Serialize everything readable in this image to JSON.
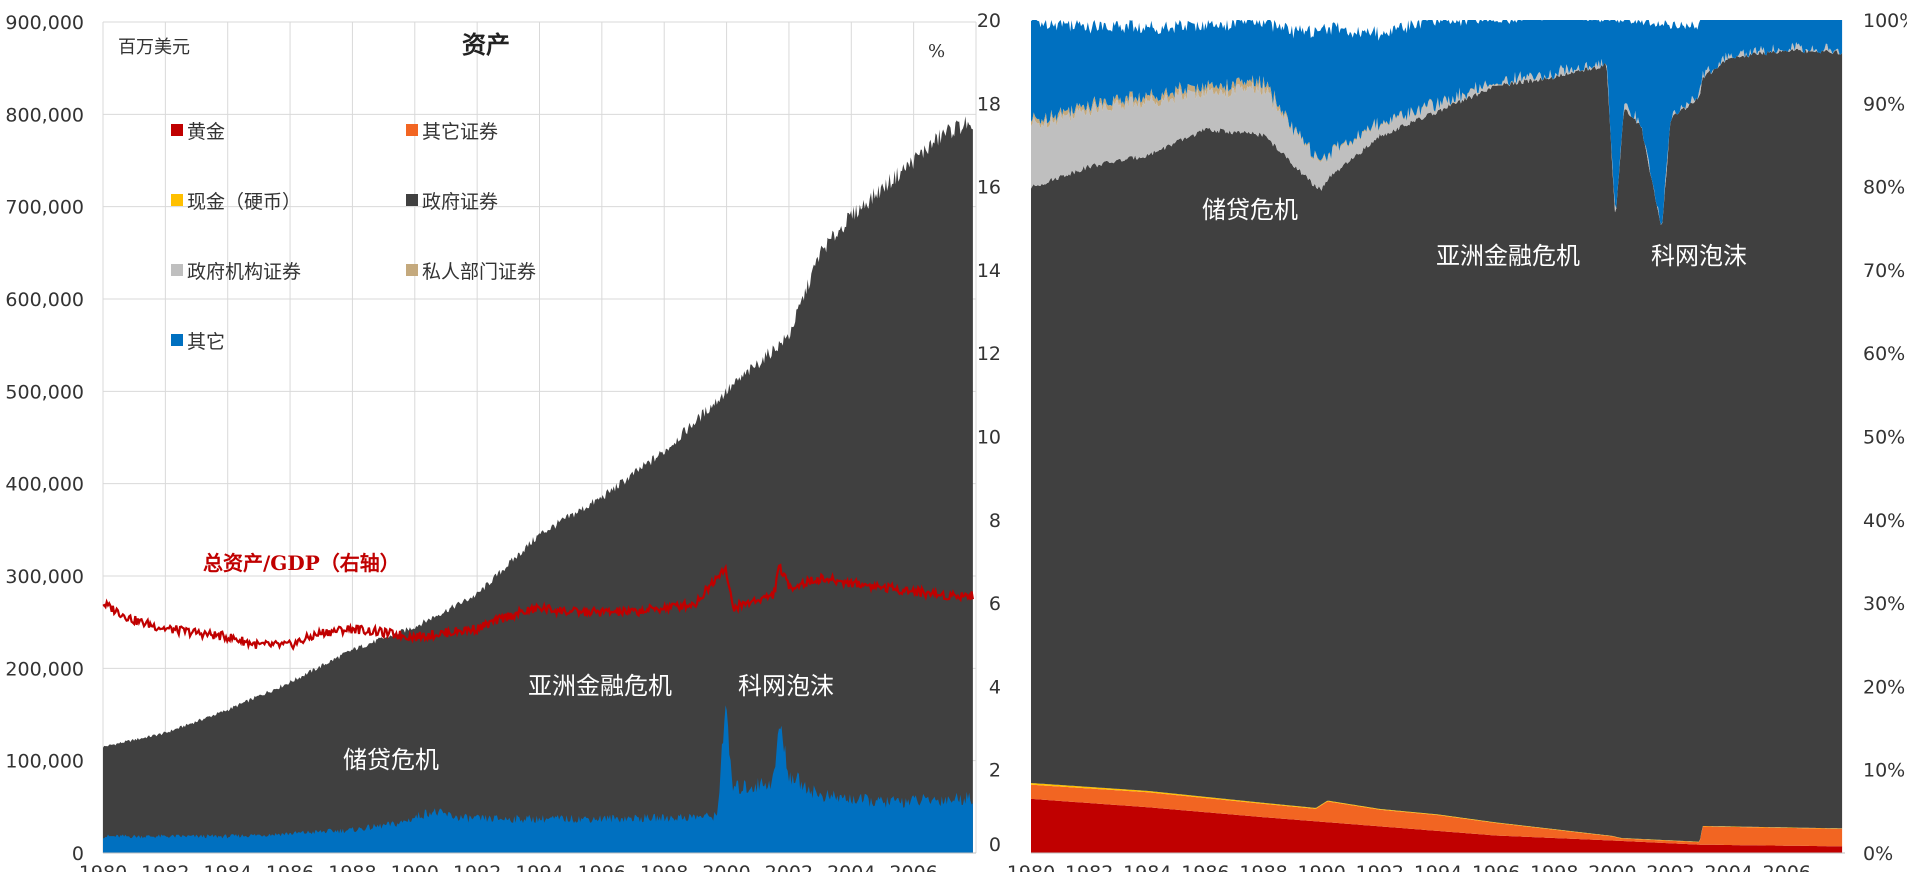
{
  "colors": {
    "gold": "#c00000",
    "other_securities": "#f26522",
    "cash": "#ffc000",
    "government": "#404040",
    "agency": "#bfbfbf",
    "private": "#c4a97d",
    "other": "#0070c0",
    "ratio_line": "#c00000",
    "grid": "#d9d9d9"
  },
  "chart_data": [
    {
      "type": "area",
      "title": "资产",
      "unit_left": "百万美元",
      "unit_right": "%",
      "x_ticks": [
        "1980",
        "1982",
        "1984",
        "1986",
        "1988",
        "1990",
        "1992",
        "1994",
        "1996",
        "1998",
        "2000",
        "2002",
        "2004",
        "2006"
      ],
      "xlim": [
        1980,
        2008
      ],
      "ylim": [
        0,
        900000
      ],
      "y_ticks": [
        "0",
        "100,000",
        "200,000",
        "300,000",
        "400,000",
        "500,000",
        "600,000",
        "700,000",
        "800,000",
        "900,000"
      ],
      "legend": [
        "黄金",
        "其它证券",
        "现金（硬币）",
        "政府证券",
        "政府机构证券",
        "私人部门证券",
        "其它"
      ],
      "series": [
        {
          "name": "其它",
          "x": [
            1980,
            1982,
            1984,
            1986,
            1988,
            1989.5,
            1990.5,
            1991.5,
            1992,
            1995,
            1998,
            1999.7,
            1999.95,
            2000.2,
            2000.8,
            2001.5,
            2001.7,
            2002,
            2003,
            2005,
            2007,
            2007.9
          ],
          "values": [
            18000,
            18000,
            18000,
            21000,
            25000,
            32000,
            45000,
            38000,
            37000,
            37000,
            38000,
            40000,
            160000,
            70000,
            72000,
            78000,
            140000,
            85000,
            62000,
            55000,
            58000,
            60000
          ]
        },
        {
          "name": "总资产",
          "x": [
            1980,
            1982,
            1984,
            1986,
            1988,
            1990,
            1992,
            1994,
            1996,
            1998,
            2000,
            2002,
            2003,
            2004,
            2005,
            2006,
            2007,
            2007.7,
            2007.9
          ],
          "values": [
            115000,
            130000,
            155000,
            185000,
            220000,
            245000,
            280000,
            345000,
            385000,
            435000,
            500000,
            560000,
            650000,
            690000,
            720000,
            750000,
            780000,
            790000,
            775000
          ]
        }
      ],
      "ratio_series": {
        "name": "总资产/GDP（右轴）",
        "ylim": [
          0,
          20
        ],
        "x": [
          1980,
          1981,
          1982,
          1983,
          1984,
          1985,
          1986,
          1987,
          1988,
          1989,
          1990,
          1991,
          1992,
          1993,
          1994,
          1995,
          1996,
          1997,
          1998,
          1999,
          1999.95,
          2000.2,
          2001,
          2001.5,
          2001.7,
          2002,
          2003,
          2004,
          2005,
          2006,
          2007,
          2007.9
        ],
        "values": [
          6.0,
          5.6,
          5.4,
          5.3,
          5.2,
          5.0,
          5.0,
          5.3,
          5.4,
          5.3,
          5.2,
          5.3,
          5.4,
          5.7,
          5.9,
          5.8,
          5.8,
          5.8,
          5.9,
          6.0,
          6.9,
          5.9,
          6.1,
          6.2,
          6.9,
          6.4,
          6.6,
          6.5,
          6.4,
          6.3,
          6.2,
          6.2
        ]
      },
      "annotations": [
        "储贷危机",
        "亚洲金融危机",
        "科网泡沫",
        "总资产/GDP（右轴）"
      ]
    },
    {
      "type": "area",
      "stacked_percent": true,
      "x_ticks": [
        "1980",
        "1982",
        "1984",
        "1986",
        "1988",
        "1990",
        "1992",
        "1994",
        "1996",
        "1998",
        "2000",
        "2002",
        "2004",
        "2006"
      ],
      "xlim": [
        1980,
        2008
      ],
      "ylim_left": [
        0,
        20
      ],
      "y_ticks_left": [
        "0",
        "2",
        "4",
        "6",
        "8",
        "10",
        "12",
        "14",
        "16",
        "18",
        "20"
      ],
      "y_ticks_right": [
        "0%",
        "10%",
        "20%",
        "30%",
        "40%",
        "50%",
        "60%",
        "70%",
        "80%",
        "90%",
        "100%"
      ],
      "series": [
        {
          "name": "黄金",
          "x": [
            1980,
            1984,
            1988,
            1992,
            1996,
            2000,
            2003,
            2007.9
          ],
          "values": [
            6.5,
            5.5,
            4.3,
            3.2,
            2.1,
            1.5,
            1.0,
            0.8
          ]
        },
        {
          "name": "其它证券",
          "x": [
            1980,
            1984,
            1988,
            1989.8,
            1990.2,
            1992,
            1994,
            1996,
            2000,
            2000.3,
            2003,
            2003.1,
            2007.9
          ],
          "values": [
            1.7,
            1.8,
            1.6,
            1.5,
            2.5,
            2.0,
            1.9,
            1.5,
            0.5,
            0.3,
            0.3,
            2.2,
            2.1
          ]
        },
        {
          "name": "现金（硬币）",
          "x": [
            1980,
            1990,
            2000,
            2007.9
          ],
          "values": [
            0.2,
            0.1,
            0.05,
            0.05
          ]
        },
        {
          "name": "政府证券",
          "x": [
            1980,
            1982,
            1984,
            1986,
            1988,
            1990,
            1991,
            1992,
            1994,
            1996,
            1998,
            1999.8,
            2000.1,
            2000.4,
            2001,
            2001.7,
            2002,
            2004,
            2006,
            2007.9
          ],
          "values": [
            71.5,
            74.5,
            76.3,
            80.1,
            80.2,
            73.9,
            77.3,
            80.8,
            84.4,
            88.4,
            90.3,
            92.5,
            74.0,
            87.6,
            85.4,
            73.1,
            86.6,
            92.3,
            93.3,
            93.1
          ]
        },
        {
          "name": "政府机构证券",
          "x": [
            1980,
            1984,
            1986,
            1988,
            1990,
            1992,
            1994,
            1996,
            1999,
            2007.9
          ],
          "values": [
            7.5,
            6.5,
            4.5,
            5.5,
            3.0,
            1.5,
            0.8,
            0.4,
            0.2,
            0.0
          ]
        },
        {
          "name": "私人部门证券",
          "x": [
            1980,
            1988,
            1989,
            2000,
            2007.9
          ],
          "values": [
            0.5,
            0.8,
            0.2,
            0.0,
            0.0
          ]
        },
        {
          "name": "其它",
          "x": [
            1980,
            1982,
            1984,
            1986,
            1988,
            1990,
            1991,
            1992,
            1994,
            1996,
            1998,
            1999.8,
            2000.1,
            2000.4,
            2001,
            2001.7,
            2002,
            2004,
            2006,
            2007.9
          ],
          "values": [
            12.1,
            9.4,
            8.2,
            7.3,
            7.4,
            15.8,
            13.0,
            10.7,
            10.3,
            7.5,
            7.1,
            5.3,
            24.0,
            10.2,
            12.6,
            24.5,
            11.0,
            5.4,
            4.4,
            4.6
          ]
        }
      ],
      "annotations": [
        "储贷危机",
        "亚洲金融危机",
        "科网泡沫"
      ]
    }
  ]
}
